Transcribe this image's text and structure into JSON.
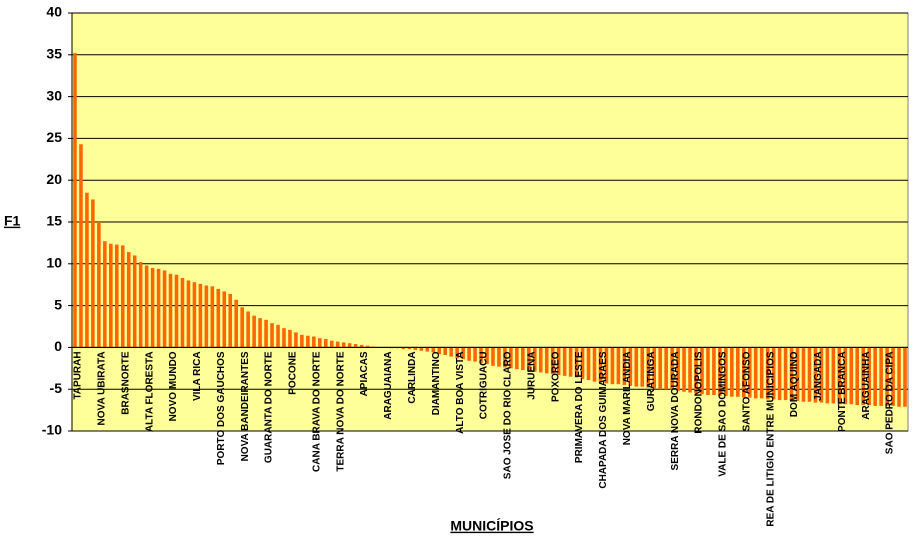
{
  "chart_data": {
    "type": "bar",
    "y_label": "F1",
    "x_label": "MUNICÍPIOS",
    "color": "#ff6600",
    "background": "#ffff99",
    "grid": true,
    "ylim": [
      -10,
      40
    ],
    "yticks": [
      -10,
      -5,
      0,
      5,
      10,
      15,
      20,
      25,
      30,
      35,
      40
    ],
    "categories": [
      "TAPURAH",
      null,
      null,
      null,
      "NOVA UBIRATA",
      null,
      null,
      null,
      "BRASNORTE",
      null,
      null,
      null,
      "ALTA FLORESTA",
      null,
      null,
      null,
      "NOVO MUNDO",
      null,
      null,
      null,
      "VILA RICA",
      null,
      null,
      null,
      "PORTO DOS GAUCHOS",
      null,
      null,
      null,
      "NOVA BANDEIRANTES",
      null,
      null,
      null,
      "GUARANTA DO NORTE",
      null,
      null,
      null,
      "POCONE",
      null,
      null,
      null,
      "CANA BRAVA DO NORTE",
      null,
      null,
      null,
      "TERRA NOVA DO NORTE",
      null,
      null,
      null,
      "APIACAS",
      null,
      null,
      null,
      "ARAGUAIANA",
      null,
      null,
      null,
      "CARLINDA",
      null,
      null,
      null,
      "DIAMANTINO",
      null,
      null,
      null,
      "ALTO BOA VISTA",
      null,
      null,
      null,
      "COTRIGUACU",
      null,
      null,
      null,
      "SAO JOSE DO RIO CLARO",
      null,
      null,
      null,
      "JURUENA",
      null,
      null,
      null,
      "POXOREO",
      null,
      null,
      null,
      "PRIMAVERA DO LESTE",
      null,
      null,
      null,
      "CHAPADA DOS GUIMARAES",
      null,
      null,
      null,
      "NOVA MARILANDIA",
      null,
      null,
      null,
      "GURATINGA",
      null,
      null,
      null,
      "SERRA NOVA DOURADA",
      null,
      null,
      null,
      "RONDONOPOLIS",
      null,
      null,
      null,
      "VALE DE SAO DOMINGOS",
      null,
      null,
      null,
      "SANTO AFONSO",
      null,
      null,
      null,
      "REA DE LITIGIO ENTRE MUNICIPIOS",
      null,
      null,
      null,
      "DOM AQUINO",
      null,
      null,
      null,
      "JANGADA",
      null,
      null,
      null,
      "PONTE BRANCA",
      null,
      null,
      null,
      "ARAGUAINHA",
      null,
      null,
      null,
      "SAO PEDRO DA CIPA",
      null,
      null,
      null
    ],
    "values": [
      35.2,
      24.3,
      18.5,
      17.7,
      15.0,
      12.7,
      12.4,
      12.3,
      12.2,
      11.4,
      11.0,
      10.2,
      9.8,
      9.5,
      9.4,
      9.2,
      8.8,
      8.7,
      8.3,
      8.0,
      7.8,
      7.6,
      7.4,
      7.3,
      7.0,
      6.7,
      6.4,
      5.7,
      4.8,
      4.3,
      3.8,
      3.5,
      3.3,
      2.9,
      2.7,
      2.3,
      2.1,
      1.8,
      1.5,
      1.4,
      1.3,
      1.1,
      1.0,
      0.8,
      0.7,
      0.6,
      0.5,
      0.4,
      0.3,
      0.2,
      0.1,
      0.05,
      0,
      -0.1,
      -0.1,
      -0.2,
      -0.2,
      -0.3,
      -0.4,
      -0.5,
      -0.6,
      -0.8,
      -0.9,
      -1.1,
      -1.3,
      -1.4,
      -1.6,
      -1.7,
      -1.9,
      -2.0,
      -2.2,
      -2.3,
      -2.4,
      -2.5,
      -2.6,
      -2.7,
      -2.8,
      -2.9,
      -3.0,
      -3.1,
      -3.2,
      -3.3,
      -3.4,
      -3.5,
      -3.6,
      -3.8,
      -3.9,
      -4.1,
      -4.2,
      -4.3,
      -4.4,
      -4.4,
      -4.5,
      -4.6,
      -4.7,
      -4.7,
      -4.8,
      -4.9,
      -5.0,
      -5.0,
      -5.1,
      -5.2,
      -5.3,
      -5.4,
      -5.5,
      -5.6,
      -5.7,
      -5.7,
      -5.8,
      -5.8,
      -5.9,
      -5.9,
      -6.0,
      -6.0,
      -6.1,
      -6.1,
      -6.2,
      -6.2,
      -6.3,
      -6.3,
      -6.4,
      -6.4,
      -6.5,
      -6.5,
      -6.6,
      -6.6,
      -6.7,
      -6.7,
      -6.8,
      -6.8,
      -6.8,
      -6.9,
      -6.9,
      -6.9,
      -7.0,
      -7.0,
      -7.0,
      -7.0,
      -7.1,
      -7.1
    ]
  }
}
